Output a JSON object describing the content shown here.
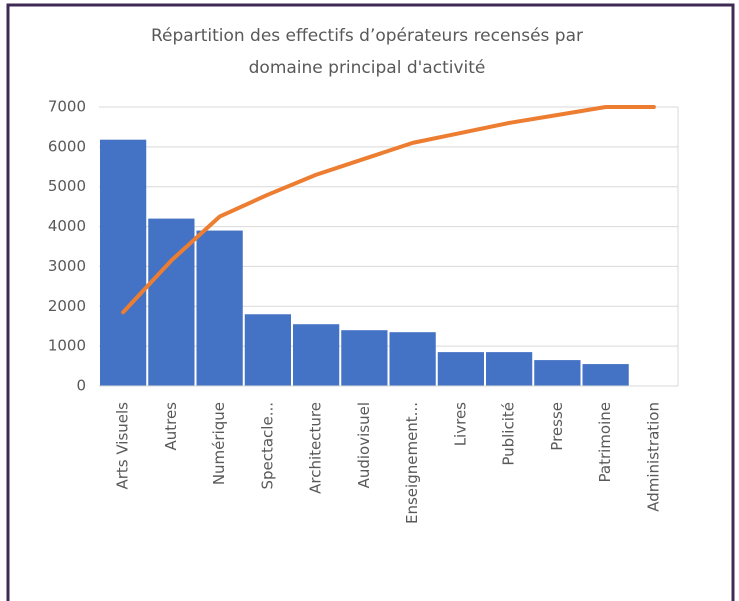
{
  "chart_data": {
    "type": "bar",
    "title": [
      "Répartition des effectifs d’opérateurs recensés par",
      "domaine principal d'activité"
    ],
    "categories": [
      "Arts Visuels",
      "Autres",
      "Numérique",
      "Spectacle...",
      "Architecture",
      "Audiovisuel",
      "Enseignement...",
      "Livres",
      "Publicité",
      "Presse",
      "Patrimoine",
      "Administration"
    ],
    "series": [
      {
        "type": "bar",
        "color": "#4472c4",
        "values": [
          6180,
          4200,
          3900,
          1800,
          1550,
          1400,
          1350,
          850,
          850,
          650,
          550,
          0
        ]
      },
      {
        "type": "line",
        "color": "#ed7d31",
        "values": [
          1850,
          3150,
          4250,
          4800,
          5300,
          5700,
          6100,
          6350,
          6600,
          6800,
          7000,
          7000
        ]
      }
    ],
    "ylim": [
      0,
      7000
    ],
    "yticks": [
      0,
      1000,
      2000,
      3000,
      4000,
      5000,
      6000,
      7000
    ],
    "grid": true
  }
}
